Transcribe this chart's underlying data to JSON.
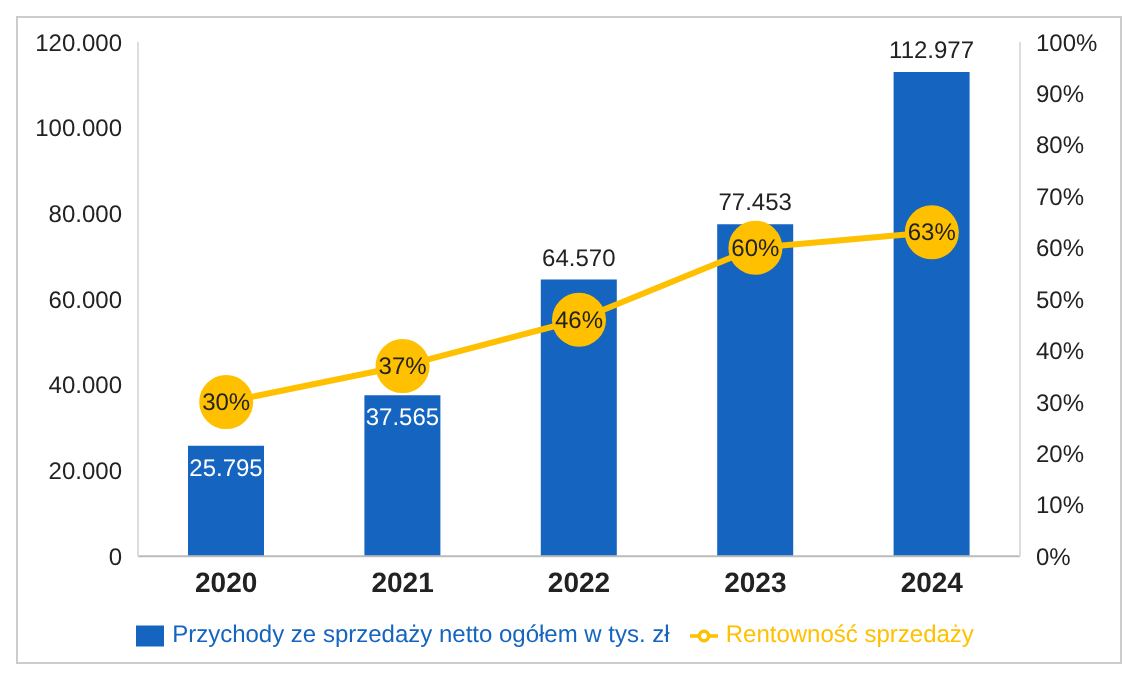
{
  "chart_data": {
    "type": "bar",
    "categories": [
      "2020",
      "2021",
      "2022",
      "2023",
      "2024"
    ],
    "series": [
      {
        "name": "Przychody ze sprzedaży netto ogółem w tys. zł",
        "type": "bar",
        "color": "#1565c0",
        "values": [
          25795,
          37565,
          64570,
          77453,
          112977
        ],
        "value_labels": [
          "25.795",
          "37.565",
          "64.570",
          "77.453",
          "112.977"
        ]
      },
      {
        "name": "Rentowność sprzedaży",
        "type": "line",
        "axis": "y2",
        "color": "#ffc000",
        "values": [
          30,
          37,
          46,
          60,
          63
        ],
        "value_labels": [
          "30%",
          "37%",
          "46%",
          "60%",
          "63%"
        ]
      }
    ],
    "ylim": [
      0,
      120000
    ],
    "yticks": [
      0,
      {
        "value": 20000,
        "label": "20.000"
      },
      {
        "value": 40000,
        "label": "40.000"
      },
      {
        "value": 60000,
        "label": "60.000"
      },
      {
        "value": 80000,
        "label": "80.000"
      },
      {
        "value": 100000,
        "label": "100.000"
      },
      {
        "value": 120000,
        "label": "120.000"
      }
    ],
    "y2lim": [
      0,
      100
    ],
    "y2ticks": [
      {
        "value": 0,
        "label": "0%"
      },
      {
        "value": 10,
        "label": "10%"
      },
      {
        "value": 20,
        "label": "20%"
      },
      {
        "value": 30,
        "label": "30%"
      },
      {
        "value": 40,
        "label": "40%"
      },
      {
        "value": 50,
        "label": "50%"
      },
      {
        "value": 60,
        "label": "60%"
      },
      {
        "value": 70,
        "label": "70%"
      },
      {
        "value": 80,
        "label": "80%"
      },
      {
        "value": 90,
        "label": "90%"
      },
      {
        "value": 100,
        "label": "100%"
      }
    ],
    "legend": "bottom",
    "marker": "circle",
    "line_style": "solid",
    "grid": false
  }
}
